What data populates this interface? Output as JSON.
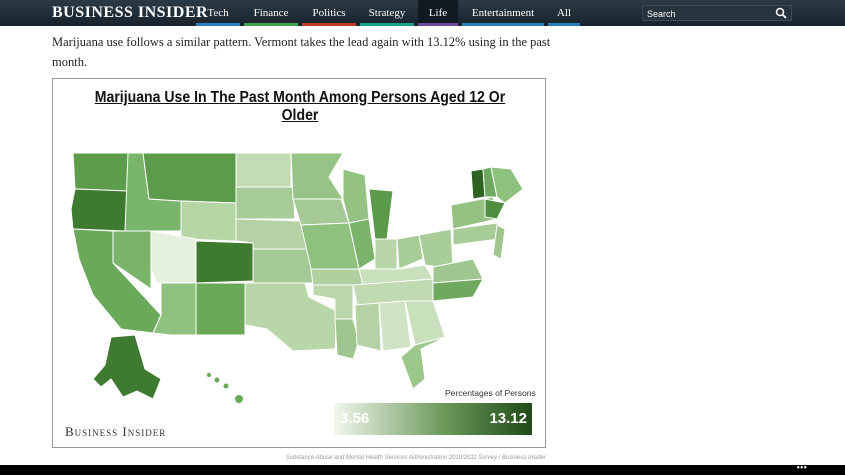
{
  "nav": {
    "logo": "BUSINESS INSIDER",
    "items": [
      "Tech",
      "Finance",
      "Politics",
      "Strategy",
      "Life",
      "Entertainment",
      "All"
    ],
    "search": "Search"
  },
  "article": {
    "paragraph": "Marijuana use follows a similar pattern. Vermont takes the lead again with 13.12% using in the past month."
  },
  "figure": {
    "title": "Marijuana Use In The Past Month Among Persons Aged 12 Or Older",
    "legend_label": "Percentages of Persons",
    "legend_min": 3.56,
    "legend_max": 13.12,
    "logo": "Business Insider",
    "source": "Substance Abuse and Mental Health Services Administration 2010/2011 Survey / Business Insider"
  }
}
